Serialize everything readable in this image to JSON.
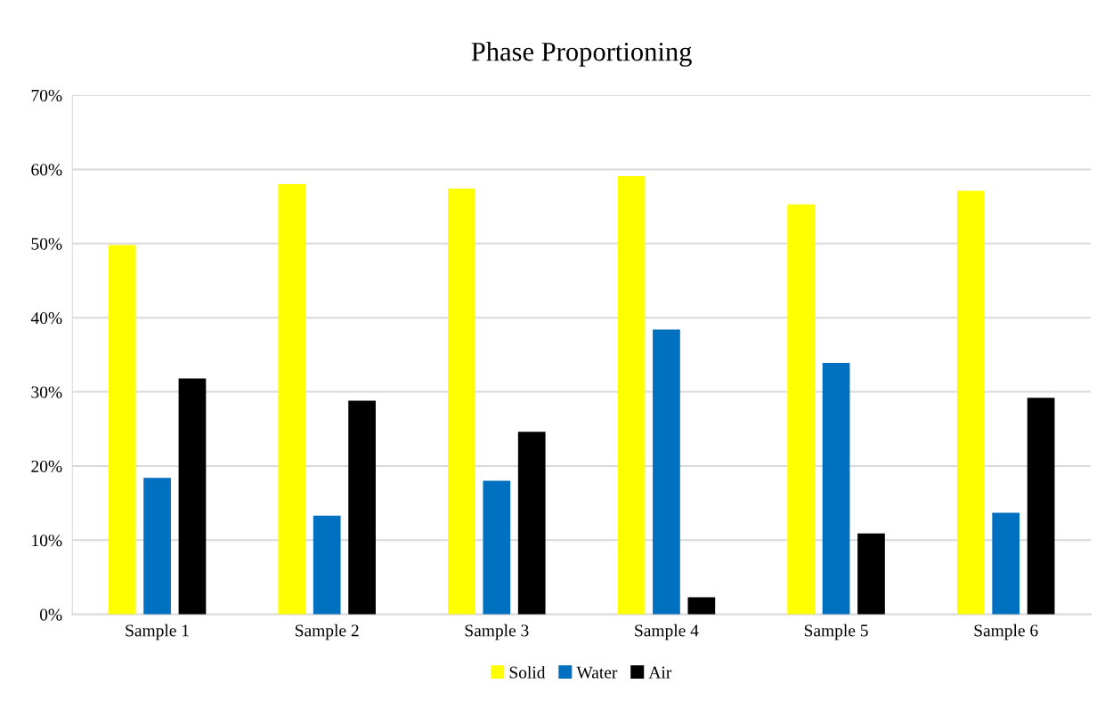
{
  "chart_data": {
    "type": "bar",
    "title": "Phase Proportioning",
    "categories": [
      "Sample 1",
      "Sample 2",
      "Sample 3",
      "Sample 4",
      "Sample 5",
      "Sample 6"
    ],
    "series": [
      {
        "name": "Solid",
        "color": "#ffff00",
        "values": [
          49.8,
          58.0,
          57.4,
          59.1,
          55.3,
          57.1
        ]
      },
      {
        "name": "Water",
        "color": "#0070c0",
        "values": [
          18.4,
          13.3,
          18.0,
          38.4,
          33.9,
          13.7
        ]
      },
      {
        "name": "Air",
        "color": "#000000",
        "values": [
          31.8,
          28.8,
          24.6,
          2.3,
          10.9,
          29.2
        ]
      }
    ],
    "ylim": [
      0,
      70
    ],
    "yticks": [
      {
        "value": 0,
        "label": "0%"
      },
      {
        "value": 10,
        "label": "10%"
      },
      {
        "value": 20,
        "label": "20%"
      },
      {
        "value": 30,
        "label": "30%"
      },
      {
        "value": 40,
        "label": "40%"
      },
      {
        "value": 50,
        "label": "50%"
      },
      {
        "value": 60,
        "label": "60%"
      },
      {
        "value": 70,
        "label": "70%"
      }
    ],
    "grid": "y",
    "legend": "bottom"
  }
}
